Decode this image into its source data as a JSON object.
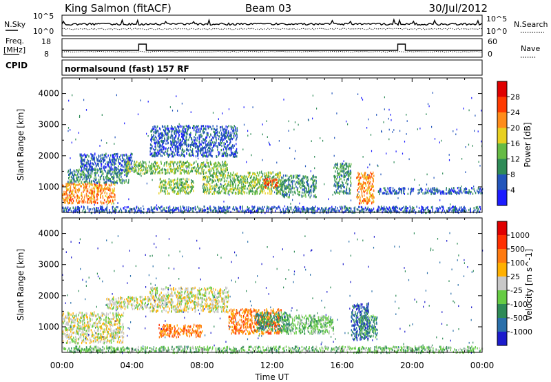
{
  "header": {
    "station": "King Salmon (fitACF)",
    "beam": "Beam 03",
    "date": "30/Jul/2012"
  },
  "noise_panel": {
    "left_label": "N.Sky",
    "right_label": "N.Search",
    "left_ticks": [
      "10^5",
      "10^0"
    ],
    "right_ticks": [
      "10^5",
      "10^0"
    ]
  },
  "freq_panel": {
    "left_label_1": "Freq.",
    "left_label_2": "[MHz]",
    "left_ticks": [
      "18",
      "8"
    ],
    "right_label": "Nave",
    "right_ticks": [
      "60",
      "0"
    ],
    "freq_step_hours": [
      4.5,
      19.3
    ]
  },
  "cpid": {
    "label": "CPID",
    "program": "normalsound (fast) 157 RF"
  },
  "x_axis": {
    "label": "Time UT",
    "ticks": [
      "00:00",
      "04:00",
      "08:00",
      "12:00",
      "16:00",
      "20:00",
      "00:00"
    ],
    "range_hours": [
      0,
      24
    ]
  },
  "chart_data": [
    {
      "type": "heatmap",
      "name": "power-panel",
      "ylabel": "Slant Range [km]",
      "ylim": [
        180,
        4500
      ],
      "yticks": [
        "1000",
        "2000",
        "3000",
        "4000"
      ],
      "colorbar": {
        "label": "Power [dB]",
        "ticks": [
          "4",
          "8",
          "12",
          "16",
          "20",
          "24",
          "28"
        ],
        "colors": [
          "#1c1cff",
          "#2255bb",
          "#2e8b57",
          "#66bb44",
          "#e8d020",
          "#ff8c1a",
          "#ff3a00",
          "#e00000"
        ]
      },
      "regions": [
        {
          "t": [
            0.0,
            3.0
          ],
          "r": [
            500,
            1150
          ],
          "level": 5
        },
        {
          "t": [
            0.3,
            3.8
          ],
          "r": [
            1150,
            1600
          ],
          "level": 2
        },
        {
          "t": [
            1.0,
            4.0
          ],
          "r": [
            1550,
            2100
          ],
          "level": 1
        },
        {
          "t": [
            3.6,
            9.5
          ],
          "r": [
            1450,
            1850
          ],
          "level": 3
        },
        {
          "t": [
            5.0,
            10.0
          ],
          "r": [
            2000,
            3000
          ],
          "level": 1
        },
        {
          "t": [
            5.5,
            7.5
          ],
          "r": [
            800,
            1300
          ],
          "level": 3
        },
        {
          "t": [
            8.0,
            12.5
          ],
          "r": [
            800,
            1500
          ],
          "level": 3
        },
        {
          "t": [
            11.5,
            12.3
          ],
          "r": [
            1000,
            1300
          ],
          "level": 6
        },
        {
          "t": [
            12.5,
            14.5
          ],
          "r": [
            700,
            1400
          ],
          "level": 2
        },
        {
          "t": [
            15.5,
            16.5
          ],
          "r": [
            800,
            1800
          ],
          "level": 2
        },
        {
          "t": [
            16.8,
            17.8
          ],
          "r": [
            500,
            1500
          ],
          "level": 5
        },
        {
          "t": [
            0.0,
            24.0
          ],
          "r": [
            200,
            400
          ],
          "level": 1
        },
        {
          "t": [
            18.0,
            24.0
          ],
          "r": [
            800,
            1000
          ],
          "level": 1
        }
      ]
    },
    {
      "type": "heatmap",
      "name": "velocity-panel",
      "ylabel": "Slant Range [km]",
      "ylim": [
        180,
        4500
      ],
      "yticks": [
        "1000",
        "2000",
        "3000",
        "4000"
      ],
      "colorbar": {
        "label": "Velocity [m s^-1]",
        "ticks": [
          "1000",
          "500",
          "100",
          "25",
          "-25",
          "-100",
          "-500",
          "-1000"
        ],
        "colors": [
          "#1c1ccc",
          "#2a6faa",
          "#2e8b57",
          "#66cc44",
          "#c8c8c8",
          "#ffb000",
          "#ff7a10",
          "#ff3000",
          "#e00000"
        ]
      },
      "regions": [
        {
          "t": [
            0.0,
            3.5
          ],
          "r": [
            500,
            1500
          ],
          "level": 4
        },
        {
          "t": [
            2.5,
            5.0
          ],
          "r": [
            1600,
            2000
          ],
          "level": 4
        },
        {
          "t": [
            5.0,
            9.5
          ],
          "r": [
            1500,
            2300
          ],
          "level": 4
        },
        {
          "t": [
            5.5,
            8.0
          ],
          "r": [
            700,
            1100
          ],
          "level": 6
        },
        {
          "t": [
            9.5,
            12.5
          ],
          "r": [
            800,
            1600
          ],
          "level": 6
        },
        {
          "t": [
            11.0,
            13.0
          ],
          "r": [
            900,
            1500
          ],
          "level": 2
        },
        {
          "t": [
            12.5,
            15.5
          ],
          "r": [
            800,
            1400
          ],
          "level": 3
        },
        {
          "t": [
            16.5,
            17.5
          ],
          "r": [
            600,
            1800
          ],
          "level": 1
        },
        {
          "t": [
            17.0,
            18.0
          ],
          "r": [
            700,
            1400
          ],
          "level": 2
        },
        {
          "t": [
            0.0,
            24.0
          ],
          "r": [
            200,
            400
          ],
          "level": 3
        }
      ]
    }
  ]
}
